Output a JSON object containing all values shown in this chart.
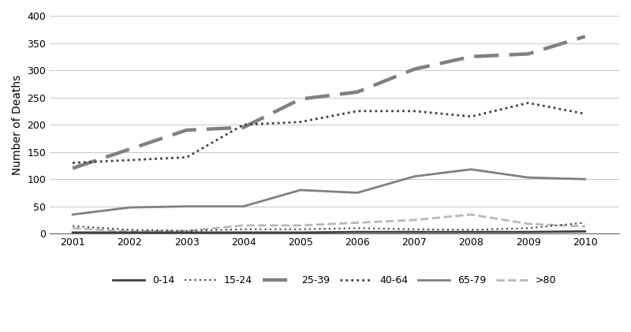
{
  "years": [
    2001,
    2002,
    2003,
    2004,
    2005,
    2006,
    2007,
    2008,
    2009,
    2010
  ],
  "series_0_14": [
    2,
    2,
    2,
    2,
    2,
    3,
    3,
    3,
    3,
    4
  ],
  "series_15_24": [
    14,
    7,
    5,
    8,
    8,
    10,
    8,
    7,
    10,
    20
  ],
  "series_25_39": [
    120,
    155,
    190,
    195,
    247,
    260,
    302,
    325,
    330,
    362
  ],
  "series_40_64": [
    130,
    135,
    140,
    200,
    205,
    225,
    225,
    215,
    240,
    220
  ],
  "series_65_79": [
    35,
    48,
    50,
    50,
    80,
    75,
    105,
    118,
    103,
    100
  ],
  "series_gt80": [
    10,
    4,
    5,
    15,
    15,
    20,
    25,
    35,
    18,
    13
  ],
  "ylabel": "Number of Deaths",
  "ylim": [
    0,
    400
  ],
  "yticks": [
    0,
    50,
    100,
    150,
    200,
    250,
    300,
    350,
    400
  ],
  "color_dark": "#404040",
  "color_mid": "#808080",
  "color_light": "#b8b8b8",
  "grid_color": "#cccccc"
}
